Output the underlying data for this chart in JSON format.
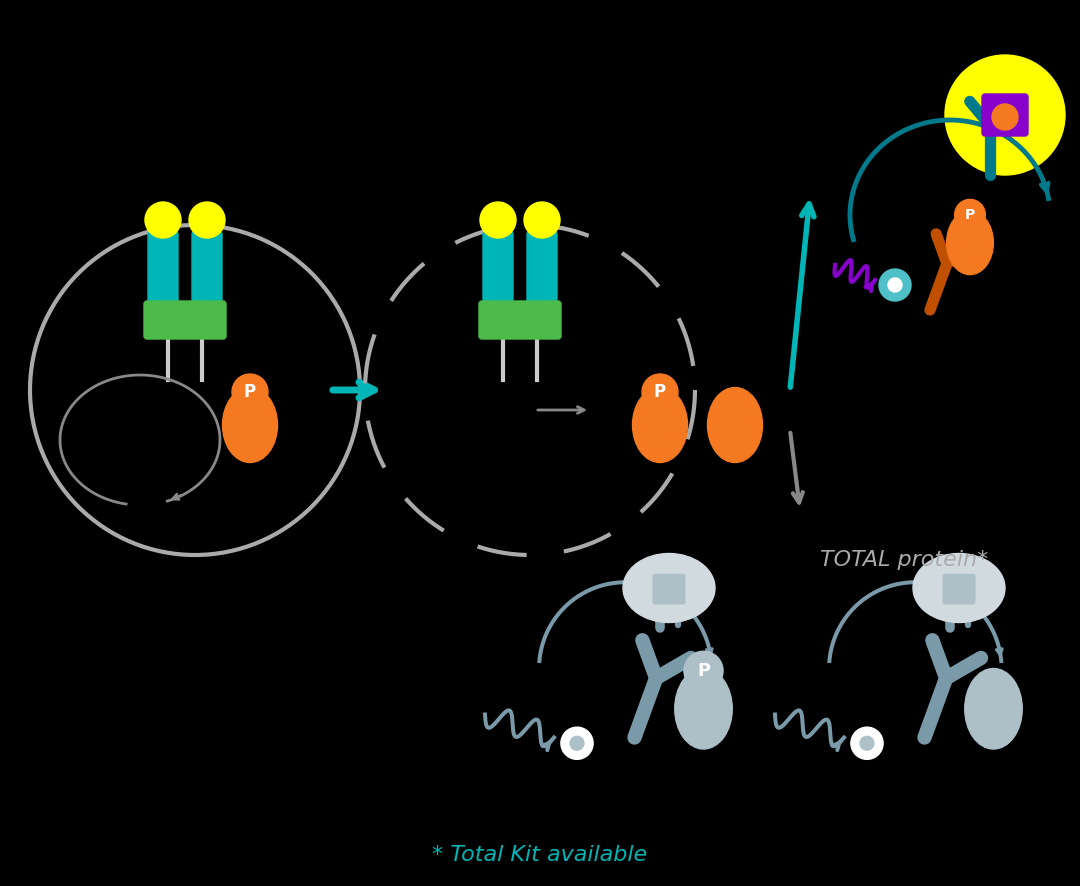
{
  "background_color": "#000000",
  "teal": "#00b5b5",
  "teal_dark": "#007a8a",
  "green": "#4cbb4c",
  "yellow": "#ffff00",
  "orange": "#f47920",
  "orange_dark": "#c05000",
  "purple": "#8800cc",
  "gray": "#7a9aaa",
  "light_gray": "#adc0c8",
  "lighter_gray": "#c8d8de",
  "white": "#ffffff",
  "cell_edge": "#aaaaaa",
  "total_protein_text": "TOTAL protein*",
  "bottom_text": "* Total Kit available",
  "p_label": "P"
}
